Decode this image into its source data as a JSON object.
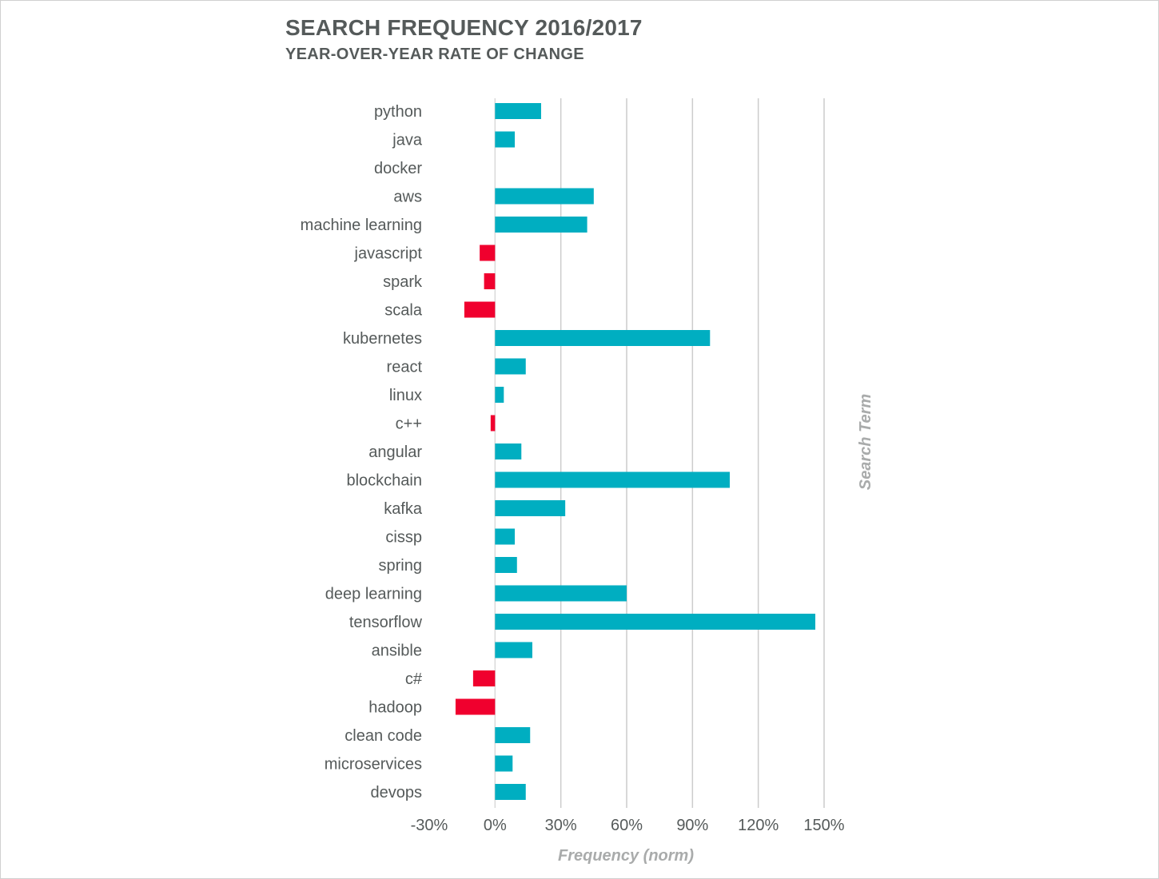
{
  "chart_data": {
    "type": "bar",
    "orientation": "horizontal",
    "title": "SEARCH FREQUENCY 2016/2017",
    "subtitle": "YEAR-OVER-YEAR RATE OF CHANGE",
    "xlabel": "Frequency (norm)",
    "ylabel": "Search Term",
    "categories": [
      "python",
      "java",
      "docker",
      "aws",
      "machine learning",
      "javascript",
      "spark",
      "scala",
      "kubernetes",
      "react",
      "linux",
      "c++",
      "angular",
      "blockchain",
      "kafka",
      "cissp",
      "spring",
      "deep learning",
      "tensorflow",
      "ansible",
      "c#",
      "hadoop",
      "clean code",
      "microservices",
      "devops"
    ],
    "values": [
      21,
      9,
      0,
      45,
      42,
      -7,
      -5,
      -14,
      98,
      14,
      4,
      -2,
      12,
      107,
      32,
      9,
      10,
      60,
      146,
      17,
      -10,
      -18,
      16,
      8,
      14
    ],
    "xlim": [
      -30,
      150
    ],
    "xticks": [
      -30,
      0,
      30,
      60,
      90,
      120,
      150
    ],
    "tick_labels": [
      "-30%",
      "0%",
      "30%",
      "60%",
      "90%",
      "120%",
      "150%"
    ],
    "grid": true,
    "legend": "none",
    "colors": {
      "positive": "#00aec1",
      "negative": "#f0002e",
      "grid": "#cccccc",
      "zero_line": "#d9d9d9"
    }
  }
}
